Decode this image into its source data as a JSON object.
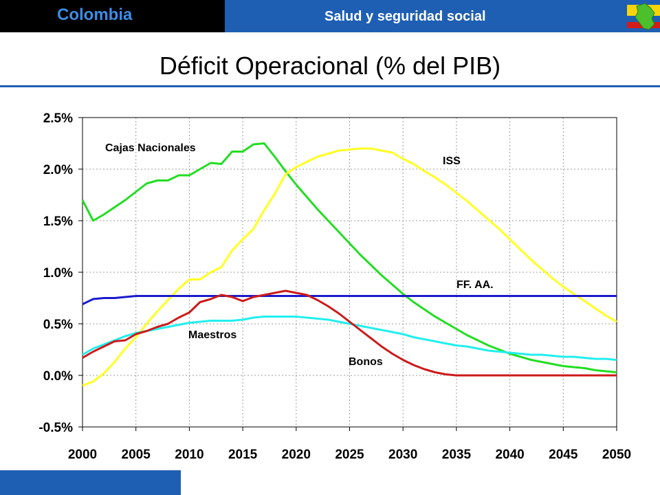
{
  "header": {
    "country": "Colombia",
    "section": "Salud y seguridad social",
    "title": "Déficit Operacional (% del PIB)"
  },
  "colors": {
    "header_left": "#000000",
    "header_right": "#1f5fb3",
    "country_text": "#3a8ee6",
    "accent": "#1f5fb3"
  },
  "chart_data": {
    "type": "line",
    "title": "Déficit Operacional (% del PIB)",
    "xlabel": "",
    "ylabel": "",
    "xlim": [
      2000,
      2050
    ],
    "ylim": [
      -0.5,
      2.5
    ],
    "grid": true,
    "x_ticks": [
      "2000",
      "2005",
      "2010",
      "2015",
      "2020",
      "2025",
      "2030",
      "2035",
      "2040",
      "2045",
      "2050"
    ],
    "y_ticks": [
      "2.5%",
      "2.0%",
      "1.5%",
      "1.0%",
      "0.5%",
      "0.0%",
      "-0.5%"
    ],
    "series": [
      {
        "name": "Cajas Nacionales",
        "color": "#22dd22",
        "points": [
          [
            2000,
            1.7
          ],
          [
            2001,
            1.5
          ],
          [
            2002,
            1.56
          ],
          [
            2003,
            1.63
          ],
          [
            2004,
            1.7
          ],
          [
            2005,
            1.78
          ],
          [
            2006,
            1.86
          ],
          [
            2007,
            1.89
          ],
          [
            2008,
            1.89
          ],
          [
            2009,
            1.94
          ],
          [
            2010,
            1.94
          ],
          [
            2011,
            2.0
          ],
          [
            2012,
            2.06
          ],
          [
            2013,
            2.05
          ],
          [
            2014,
            2.17
          ],
          [
            2015,
            2.17
          ],
          [
            2016,
            2.24
          ],
          [
            2017,
            2.25
          ],
          [
            2018,
            2.12
          ],
          [
            2019,
            1.98
          ],
          [
            2020,
            1.85
          ],
          [
            2021,
            1.73
          ],
          [
            2022,
            1.61
          ],
          [
            2023,
            1.5
          ],
          [
            2024,
            1.39
          ],
          [
            2025,
            1.28
          ],
          [
            2026,
            1.17
          ],
          [
            2027,
            1.07
          ],
          [
            2028,
            0.97
          ],
          [
            2029,
            0.88
          ],
          [
            2030,
            0.79
          ],
          [
            2031,
            0.71
          ],
          [
            2032,
            0.64
          ],
          [
            2033,
            0.57
          ],
          [
            2034,
            0.51
          ],
          [
            2035,
            0.45
          ],
          [
            2036,
            0.39
          ],
          [
            2037,
            0.34
          ],
          [
            2038,
            0.29
          ],
          [
            2039,
            0.25
          ],
          [
            2040,
            0.21
          ],
          [
            2041,
            0.18
          ],
          [
            2042,
            0.15
          ],
          [
            2043,
            0.13
          ],
          [
            2044,
            0.11
          ],
          [
            2045,
            0.09
          ],
          [
            2046,
            0.08
          ],
          [
            2047,
            0.07
          ],
          [
            2048,
            0.05
          ],
          [
            2049,
            0.04
          ],
          [
            2050,
            0.03
          ]
        ]
      },
      {
        "name": "ISS",
        "color": "#ffff22",
        "points": [
          [
            2000,
            -0.1
          ],
          [
            2001,
            -0.06
          ],
          [
            2002,
            0.02
          ],
          [
            2003,
            0.13
          ],
          [
            2004,
            0.26
          ],
          [
            2005,
            0.37
          ],
          [
            2006,
            0.5
          ],
          [
            2007,
            0.62
          ],
          [
            2008,
            0.73
          ],
          [
            2009,
            0.84
          ],
          [
            2010,
            0.93
          ],
          [
            2011,
            0.93
          ],
          [
            2012,
            1.0
          ],
          [
            2013,
            1.05
          ],
          [
            2014,
            1.21
          ],
          [
            2015,
            1.32
          ],
          [
            2016,
            1.42
          ],
          [
            2017,
            1.6
          ],
          [
            2018,
            1.76
          ],
          [
            2019,
            1.95
          ],
          [
            2020,
            2.02
          ],
          [
            2021,
            2.07
          ],
          [
            2022,
            2.12
          ],
          [
            2023,
            2.15
          ],
          [
            2024,
            2.18
          ],
          [
            2025,
            2.19
          ],
          [
            2026,
            2.2
          ],
          [
            2027,
            2.2
          ],
          [
            2028,
            2.18
          ],
          [
            2029,
            2.16
          ],
          [
            2030,
            2.1
          ],
          [
            2031,
            2.05
          ],
          [
            2032,
            1.98
          ],
          [
            2033,
            1.92
          ],
          [
            2034,
            1.85
          ],
          [
            2035,
            1.77
          ],
          [
            2036,
            1.69
          ],
          [
            2037,
            1.6
          ],
          [
            2038,
            1.51
          ],
          [
            2039,
            1.42
          ],
          [
            2040,
            1.32
          ],
          [
            2041,
            1.22
          ],
          [
            2042,
            1.12
          ],
          [
            2043,
            1.03
          ],
          [
            2044,
            0.94
          ],
          [
            2045,
            0.86
          ],
          [
            2046,
            0.79
          ],
          [
            2047,
            0.72
          ],
          [
            2048,
            0.65
          ],
          [
            2049,
            0.58
          ],
          [
            2050,
            0.52
          ]
        ]
      },
      {
        "name": "FF. AA.",
        "color": "#1a1acc",
        "points": [
          [
            2000,
            0.69
          ],
          [
            2001,
            0.74
          ],
          [
            2002,
            0.75
          ],
          [
            2003,
            0.75
          ],
          [
            2004,
            0.76
          ],
          [
            2005,
            0.77
          ],
          [
            2010,
            0.77
          ],
          [
            2015,
            0.77
          ],
          [
            2020,
            0.77
          ],
          [
            2025,
            0.77
          ],
          [
            2030,
            0.77
          ],
          [
            2035,
            0.77
          ],
          [
            2040,
            0.77
          ],
          [
            2045,
            0.77
          ],
          [
            2050,
            0.77
          ]
        ]
      },
      {
        "name": "Maestros",
        "color": "#22eeee",
        "points": [
          [
            2000,
            0.2
          ],
          [
            2001,
            0.26
          ],
          [
            2002,
            0.3
          ],
          [
            2003,
            0.34
          ],
          [
            2004,
            0.38
          ],
          [
            2005,
            0.41
          ],
          [
            2006,
            0.43
          ],
          [
            2007,
            0.45
          ],
          [
            2008,
            0.47
          ],
          [
            2009,
            0.49
          ],
          [
            2010,
            0.51
          ],
          [
            2011,
            0.52
          ],
          [
            2012,
            0.53
          ],
          [
            2013,
            0.53
          ],
          [
            2014,
            0.53
          ],
          [
            2015,
            0.54
          ],
          [
            2016,
            0.56
          ],
          [
            2017,
            0.57
          ],
          [
            2018,
            0.57
          ],
          [
            2019,
            0.57
          ],
          [
            2020,
            0.57
          ],
          [
            2021,
            0.56
          ],
          [
            2022,
            0.55
          ],
          [
            2023,
            0.54
          ],
          [
            2024,
            0.52
          ],
          [
            2025,
            0.5
          ],
          [
            2026,
            0.48
          ],
          [
            2027,
            0.46
          ],
          [
            2028,
            0.44
          ],
          [
            2029,
            0.42
          ],
          [
            2030,
            0.4
          ],
          [
            2031,
            0.37
          ],
          [
            2032,
            0.35
          ],
          [
            2033,
            0.33
          ],
          [
            2034,
            0.31
          ],
          [
            2035,
            0.29
          ],
          [
            2036,
            0.28
          ],
          [
            2037,
            0.26
          ],
          [
            2038,
            0.24
          ],
          [
            2039,
            0.23
          ],
          [
            2040,
            0.22
          ],
          [
            2041,
            0.21
          ],
          [
            2042,
            0.2
          ],
          [
            2043,
            0.2
          ],
          [
            2044,
            0.19
          ],
          [
            2045,
            0.18
          ],
          [
            2046,
            0.18
          ],
          [
            2047,
            0.17
          ],
          [
            2048,
            0.16
          ],
          [
            2049,
            0.16
          ],
          [
            2050,
            0.15
          ]
        ]
      },
      {
        "name": "Bonos",
        "color": "#cc1a1a",
        "points": [
          [
            2000,
            0.17
          ],
          [
            2001,
            0.23
          ],
          [
            2002,
            0.28
          ],
          [
            2003,
            0.33
          ],
          [
            2004,
            0.34
          ],
          [
            2005,
            0.4
          ],
          [
            2006,
            0.43
          ],
          [
            2007,
            0.47
          ],
          [
            2008,
            0.5
          ],
          [
            2009,
            0.56
          ],
          [
            2010,
            0.61
          ],
          [
            2011,
            0.71
          ],
          [
            2012,
            0.74
          ],
          [
            2013,
            0.78
          ],
          [
            2014,
            0.76
          ],
          [
            2015,
            0.72
          ],
          [
            2016,
            0.76
          ],
          [
            2017,
            0.78
          ],
          [
            2018,
            0.8
          ],
          [
            2019,
            0.82
          ],
          [
            2020,
            0.8
          ],
          [
            2021,
            0.78
          ],
          [
            2022,
            0.73
          ],
          [
            2023,
            0.67
          ],
          [
            2024,
            0.6
          ],
          [
            2025,
            0.52
          ],
          [
            2026,
            0.44
          ],
          [
            2027,
            0.36
          ],
          [
            2028,
            0.28
          ],
          [
            2029,
            0.21
          ],
          [
            2030,
            0.15
          ],
          [
            2031,
            0.1
          ],
          [
            2032,
            0.06
          ],
          [
            2033,
            0.03
          ],
          [
            2034,
            0.01
          ],
          [
            2035,
            0.0
          ],
          [
            2040,
            0.0
          ],
          [
            2045,
            0.0
          ],
          [
            2050,
            0.0
          ]
        ]
      }
    ]
  }
}
